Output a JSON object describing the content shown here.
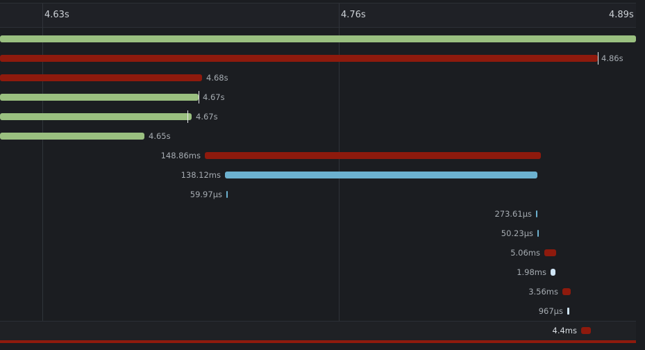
{
  "timeline": {
    "ticks": [
      {
        "label": "4.63s",
        "key": "t1"
      },
      {
        "label": "4.76s",
        "key": "t2"
      },
      {
        "label": "4.89s",
        "key": "t3"
      }
    ]
  },
  "colors": {
    "green": "#9ac080",
    "red": "#8e1a0d",
    "blue": "#6cb1cf",
    "light_blue": "#cfe4f5"
  },
  "spans": [
    {
      "label": "",
      "color": "green"
    },
    {
      "label": "4.86s",
      "color": "red"
    },
    {
      "label": "4.68s",
      "color": "red"
    },
    {
      "label": "4.67s",
      "color": "green"
    },
    {
      "label": "4.67s",
      "color": "green"
    },
    {
      "label": "4.65s",
      "color": "green"
    },
    {
      "label": "148.86ms",
      "color": "red"
    },
    {
      "label": "138.12ms",
      "color": "blue"
    },
    {
      "label": "59.97μs",
      "color": "blue"
    },
    {
      "label": "273.61μs",
      "color": "blue"
    },
    {
      "label": "50.23μs",
      "color": "blue"
    },
    {
      "label": "5.06ms",
      "color": "red"
    },
    {
      "label": "1.98ms",
      "color": "light_blue"
    },
    {
      "label": "3.56ms",
      "color": "red"
    },
    {
      "label": "967μs",
      "color": "light_blue"
    },
    {
      "label": "4.4ms",
      "color": "red"
    }
  ]
}
